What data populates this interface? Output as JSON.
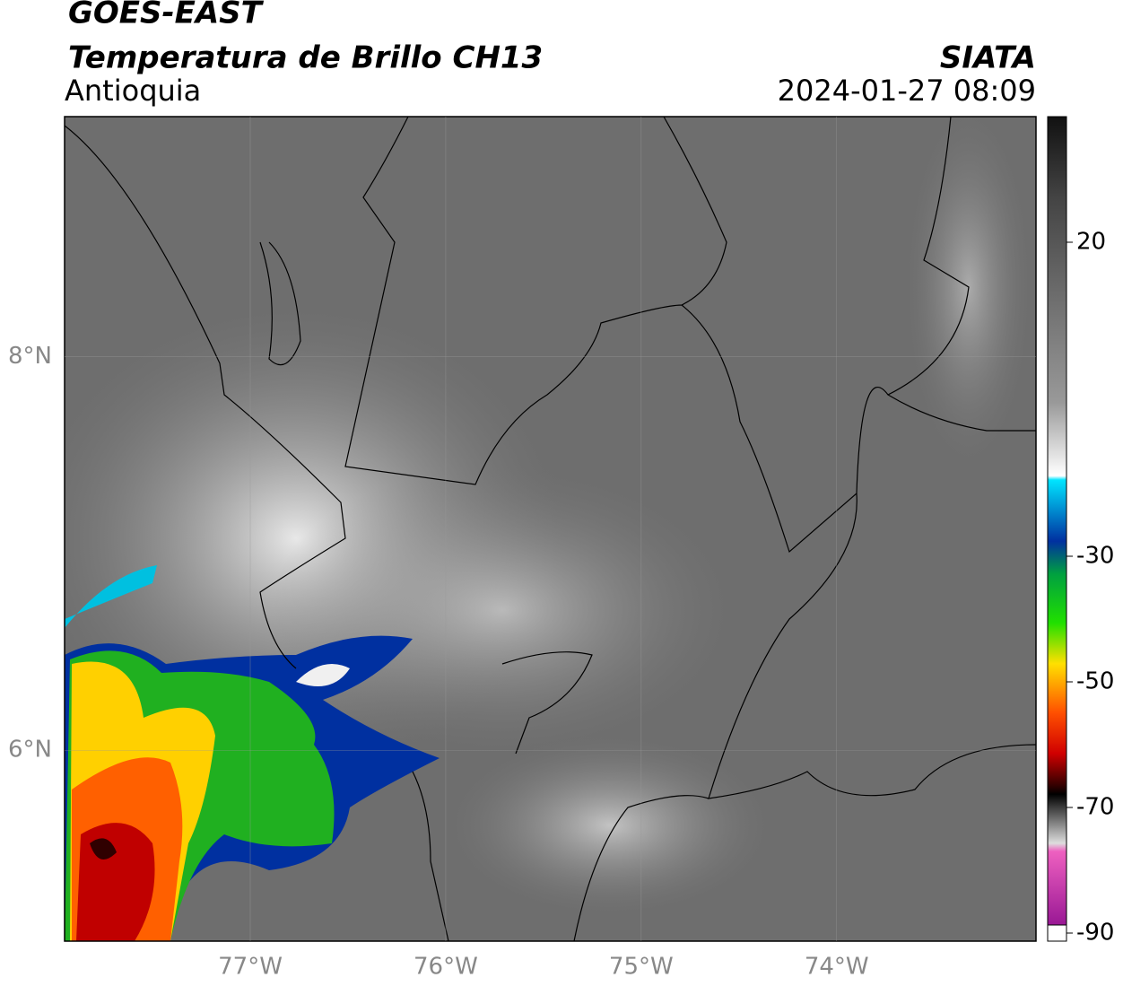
{
  "header": {
    "title": "GOES-EAST",
    "subtitle": "Temperatura de Brillo CH13",
    "region": "Antioquia",
    "source": "SIATA",
    "datetime": "2024-01-27 08:09"
  },
  "map": {
    "lon_lim": [
      -77.95,
      -72.98
    ],
    "lat_lim": [
      5.03,
      9.22
    ],
    "lon_ticks": [
      {
        "value": -77,
        "label": "77°W"
      },
      {
        "value": -76,
        "label": "76°W"
      },
      {
        "value": -75,
        "label": "75°W"
      },
      {
        "value": -74,
        "label": "74°W"
      }
    ],
    "lat_ticks": [
      {
        "value": 8,
        "label": "8°N"
      },
      {
        "value": 6,
        "label": "6°N"
      }
    ]
  },
  "colorbar": {
    "lim": [
      -90,
      40
    ],
    "ticks": [
      20,
      -30,
      -50,
      -70,
      -90
    ]
  }
}
